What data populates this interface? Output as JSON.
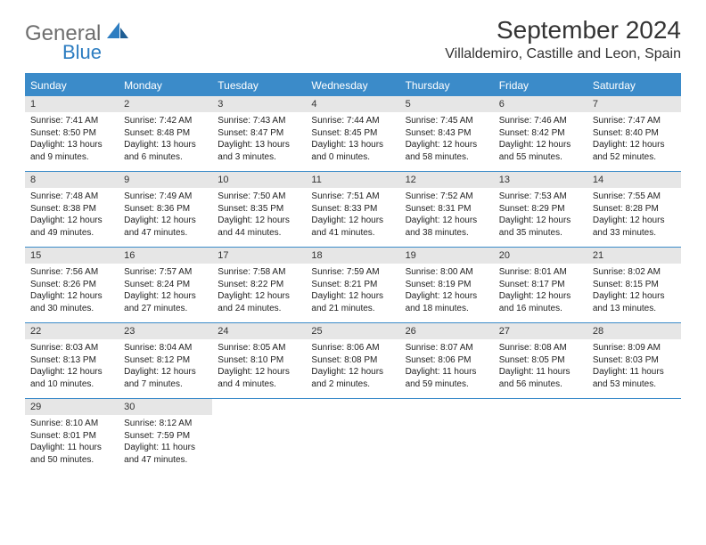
{
  "brand": {
    "general": "General",
    "blue": "Blue"
  },
  "title": "September 2024",
  "location": "Villaldemiro, Castille and Leon, Spain",
  "colors": {
    "header_bg": "#3b8bc9",
    "header_text": "#ffffff",
    "daynum_bg": "#e6e6e6",
    "rule": "#3b8bc9",
    "logo_gray": "#6e6e6e",
    "logo_blue": "#2d7dc1"
  },
  "typography": {
    "title_fontsize": 28,
    "location_fontsize": 16,
    "dayhdr_fontsize": 12,
    "daynum_fontsize": 11,
    "body_fontsize": 10
  },
  "dayHeaders": [
    "Sunday",
    "Monday",
    "Tuesday",
    "Wednesday",
    "Thursday",
    "Friday",
    "Saturday"
  ],
  "weeks": [
    [
      {
        "n": "1",
        "sr": "Sunrise: 7:41 AM",
        "ss": "Sunset: 8:50 PM",
        "d1": "Daylight: 13 hours",
        "d2": "and 9 minutes."
      },
      {
        "n": "2",
        "sr": "Sunrise: 7:42 AM",
        "ss": "Sunset: 8:48 PM",
        "d1": "Daylight: 13 hours",
        "d2": "and 6 minutes."
      },
      {
        "n": "3",
        "sr": "Sunrise: 7:43 AM",
        "ss": "Sunset: 8:47 PM",
        "d1": "Daylight: 13 hours",
        "d2": "and 3 minutes."
      },
      {
        "n": "4",
        "sr": "Sunrise: 7:44 AM",
        "ss": "Sunset: 8:45 PM",
        "d1": "Daylight: 13 hours",
        "d2": "and 0 minutes."
      },
      {
        "n": "5",
        "sr": "Sunrise: 7:45 AM",
        "ss": "Sunset: 8:43 PM",
        "d1": "Daylight: 12 hours",
        "d2": "and 58 minutes."
      },
      {
        "n": "6",
        "sr": "Sunrise: 7:46 AM",
        "ss": "Sunset: 8:42 PM",
        "d1": "Daylight: 12 hours",
        "d2": "and 55 minutes."
      },
      {
        "n": "7",
        "sr": "Sunrise: 7:47 AM",
        "ss": "Sunset: 8:40 PM",
        "d1": "Daylight: 12 hours",
        "d2": "and 52 minutes."
      }
    ],
    [
      {
        "n": "8",
        "sr": "Sunrise: 7:48 AM",
        "ss": "Sunset: 8:38 PM",
        "d1": "Daylight: 12 hours",
        "d2": "and 49 minutes."
      },
      {
        "n": "9",
        "sr": "Sunrise: 7:49 AM",
        "ss": "Sunset: 8:36 PM",
        "d1": "Daylight: 12 hours",
        "d2": "and 47 minutes."
      },
      {
        "n": "10",
        "sr": "Sunrise: 7:50 AM",
        "ss": "Sunset: 8:35 PM",
        "d1": "Daylight: 12 hours",
        "d2": "and 44 minutes."
      },
      {
        "n": "11",
        "sr": "Sunrise: 7:51 AM",
        "ss": "Sunset: 8:33 PM",
        "d1": "Daylight: 12 hours",
        "d2": "and 41 minutes."
      },
      {
        "n": "12",
        "sr": "Sunrise: 7:52 AM",
        "ss": "Sunset: 8:31 PM",
        "d1": "Daylight: 12 hours",
        "d2": "and 38 minutes."
      },
      {
        "n": "13",
        "sr": "Sunrise: 7:53 AM",
        "ss": "Sunset: 8:29 PM",
        "d1": "Daylight: 12 hours",
        "d2": "and 35 minutes."
      },
      {
        "n": "14",
        "sr": "Sunrise: 7:55 AM",
        "ss": "Sunset: 8:28 PM",
        "d1": "Daylight: 12 hours",
        "d2": "and 33 minutes."
      }
    ],
    [
      {
        "n": "15",
        "sr": "Sunrise: 7:56 AM",
        "ss": "Sunset: 8:26 PM",
        "d1": "Daylight: 12 hours",
        "d2": "and 30 minutes."
      },
      {
        "n": "16",
        "sr": "Sunrise: 7:57 AM",
        "ss": "Sunset: 8:24 PM",
        "d1": "Daylight: 12 hours",
        "d2": "and 27 minutes."
      },
      {
        "n": "17",
        "sr": "Sunrise: 7:58 AM",
        "ss": "Sunset: 8:22 PM",
        "d1": "Daylight: 12 hours",
        "d2": "and 24 minutes."
      },
      {
        "n": "18",
        "sr": "Sunrise: 7:59 AM",
        "ss": "Sunset: 8:21 PM",
        "d1": "Daylight: 12 hours",
        "d2": "and 21 minutes."
      },
      {
        "n": "19",
        "sr": "Sunrise: 8:00 AM",
        "ss": "Sunset: 8:19 PM",
        "d1": "Daylight: 12 hours",
        "d2": "and 18 minutes."
      },
      {
        "n": "20",
        "sr": "Sunrise: 8:01 AM",
        "ss": "Sunset: 8:17 PM",
        "d1": "Daylight: 12 hours",
        "d2": "and 16 minutes."
      },
      {
        "n": "21",
        "sr": "Sunrise: 8:02 AM",
        "ss": "Sunset: 8:15 PM",
        "d1": "Daylight: 12 hours",
        "d2": "and 13 minutes."
      }
    ],
    [
      {
        "n": "22",
        "sr": "Sunrise: 8:03 AM",
        "ss": "Sunset: 8:13 PM",
        "d1": "Daylight: 12 hours",
        "d2": "and 10 minutes."
      },
      {
        "n": "23",
        "sr": "Sunrise: 8:04 AM",
        "ss": "Sunset: 8:12 PM",
        "d1": "Daylight: 12 hours",
        "d2": "and 7 minutes."
      },
      {
        "n": "24",
        "sr": "Sunrise: 8:05 AM",
        "ss": "Sunset: 8:10 PM",
        "d1": "Daylight: 12 hours",
        "d2": "and 4 minutes."
      },
      {
        "n": "25",
        "sr": "Sunrise: 8:06 AM",
        "ss": "Sunset: 8:08 PM",
        "d1": "Daylight: 12 hours",
        "d2": "and 2 minutes."
      },
      {
        "n": "26",
        "sr": "Sunrise: 8:07 AM",
        "ss": "Sunset: 8:06 PM",
        "d1": "Daylight: 11 hours",
        "d2": "and 59 minutes."
      },
      {
        "n": "27",
        "sr": "Sunrise: 8:08 AM",
        "ss": "Sunset: 8:05 PM",
        "d1": "Daylight: 11 hours",
        "d2": "and 56 minutes."
      },
      {
        "n": "28",
        "sr": "Sunrise: 8:09 AM",
        "ss": "Sunset: 8:03 PM",
        "d1": "Daylight: 11 hours",
        "d2": "and 53 minutes."
      }
    ],
    [
      {
        "n": "29",
        "sr": "Sunrise: 8:10 AM",
        "ss": "Sunset: 8:01 PM",
        "d1": "Daylight: 11 hours",
        "d2": "and 50 minutes."
      },
      {
        "n": "30",
        "sr": "Sunrise: 8:12 AM",
        "ss": "Sunset: 7:59 PM",
        "d1": "Daylight: 11 hours",
        "d2": "and 47 minutes."
      },
      {
        "blank": true
      },
      {
        "blank": true
      },
      {
        "blank": true
      },
      {
        "blank": true
      },
      {
        "blank": true
      }
    ]
  ]
}
